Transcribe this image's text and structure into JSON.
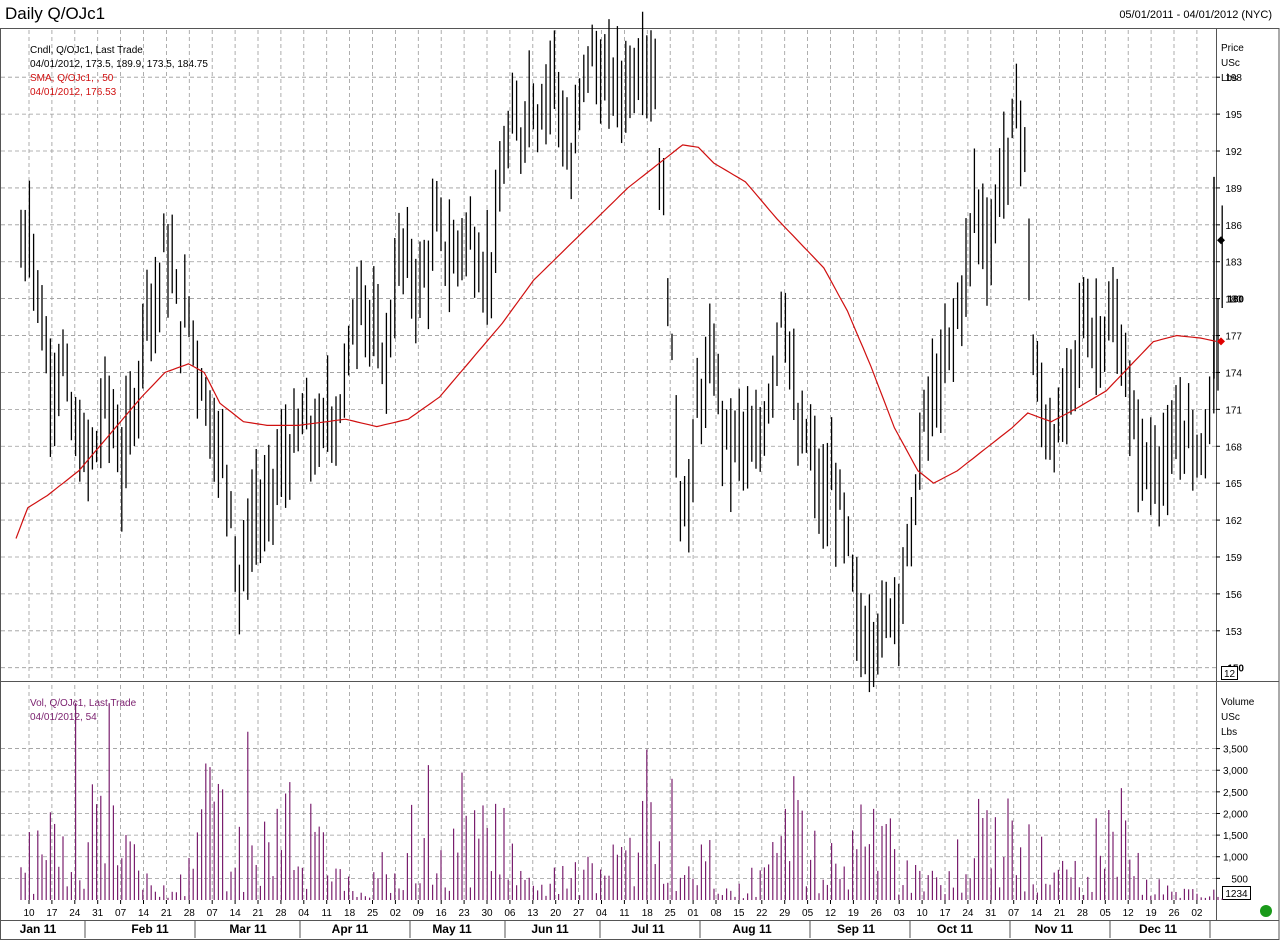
{
  "header": {
    "title": "Daily Q/OJc1",
    "date_range": "05/01/2011 - 04/01/2012 (NYC)"
  },
  "price_pane": {
    "legend": {
      "line1": "Cndl, Q/OJc1, Last Trade",
      "line2": "04/01/2012, 173.5, 189.9, 173.5, 184.75",
      "line3": "SMA, Q/OJc1, , 50",
      "line4": "04/01/2012, 176.53"
    },
    "axis_title": [
      "Price",
      "USc",
      "Lbs"
    ],
    "y_ticks": [
      153,
      156,
      159,
      162,
      165,
      168,
      171,
      174,
      177,
      180,
      183,
      186,
      189,
      192,
      195,
      198
    ],
    "bold_ticks": [
      150,
      180
    ],
    "scale_box": "12",
    "colors": {
      "bars": "#000000",
      "sma": "#d01010",
      "last_marker": "#000000",
      "sma_marker": "#e00000"
    }
  },
  "volume_pane": {
    "legend": {
      "line1": "Vol, Q/OJc1, Last Trade",
      "line2": "04/01/2012, 54"
    },
    "axis_title": [
      "Volume",
      "USc",
      "Lbs"
    ],
    "y_ticks": [
      500,
      1000,
      1500,
      2000,
      2500,
      3000,
      3500
    ],
    "y_tick_labels": [
      "500",
      "1,000",
      "1,500",
      "2,000",
      "2,500",
      "3,000",
      "3,500"
    ],
    "scale_box": "1234",
    "color": "#7a1f6e"
  },
  "x_axis": {
    "day_labels": [
      "10",
      "17",
      "24",
      "31",
      "07",
      "14",
      "21",
      "28",
      "07",
      "14",
      "21",
      "28",
      "04",
      "11",
      "18",
      "25",
      "02",
      "09",
      "16",
      "23",
      "30",
      "06",
      "13",
      "20",
      "27",
      "04",
      "11",
      "18",
      "25",
      "01",
      "08",
      "15",
      "22",
      "29",
      "05",
      "12",
      "19",
      "26",
      "03",
      "10",
      "17",
      "24",
      "31",
      "07",
      "14",
      "21",
      "28",
      "05",
      "12",
      "19",
      "26",
      "02"
    ],
    "months": [
      "Jan 11",
      "Feb 11",
      "Mar 11",
      "Apr 11",
      "May 11",
      "Jun 11",
      "Jul 11",
      "Aug 11",
      "Sep 11",
      "Oct 11",
      "Nov 11",
      "Dec 11"
    ]
  },
  "chart_data": {
    "type": "bar",
    "title": "Daily Q/OJc1",
    "date_range": "05/01/2011 - 04/01/2012 (NYC)",
    "ylim_price": [
      149,
      202
    ],
    "ylim_volume": [
      0,
      4600
    ],
    "price_anchors": [
      [
        0,
        184
      ],
      [
        2,
        186
      ],
      [
        5,
        178
      ],
      [
        7,
        173
      ],
      [
        10,
        175
      ],
      [
        12,
        170
      ],
      [
        15,
        167
      ],
      [
        18,
        168
      ],
      [
        20,
        172
      ],
      [
        22,
        170
      ],
      [
        24,
        166
      ],
      [
        26,
        170
      ],
      [
        28,
        173
      ],
      [
        30,
        181
      ],
      [
        32,
        179
      ],
      [
        34,
        184
      ],
      [
        36,
        182
      ],
      [
        38,
        178
      ],
      [
        40,
        179
      ],
      [
        42,
        175
      ],
      [
        44,
        172
      ],
      [
        46,
        169
      ],
      [
        48,
        167
      ],
      [
        50,
        164
      ],
      [
        52,
        156
      ],
      [
        54,
        160
      ],
      [
        56,
        163
      ],
      [
        58,
        162
      ],
      [
        60,
        165
      ],
      [
        63,
        167
      ],
      [
        65,
        168
      ],
      [
        67,
        170
      ],
      [
        69,
        169
      ],
      [
        71,
        168
      ],
      [
        73,
        171
      ],
      [
        75,
        170
      ],
      [
        77,
        173
      ],
      [
        79,
        178
      ],
      [
        81,
        181
      ],
      [
        83,
        178
      ],
      [
        85,
        176
      ],
      [
        87,
        175
      ],
      [
        89,
        181
      ],
      [
        91,
        184
      ],
      [
        93,
        182
      ],
      [
        95,
        181
      ],
      [
        97,
        183
      ],
      [
        99,
        186
      ],
      [
        101,
        184
      ],
      [
        103,
        183
      ],
      [
        105,
        185
      ],
      [
        107,
        185
      ],
      [
        109,
        183
      ],
      [
        111,
        182
      ],
      [
        113,
        185
      ],
      [
        115,
        191
      ],
      [
        117,
        194
      ],
      [
        119,
        193
      ],
      [
        121,
        197
      ],
      [
        123,
        195
      ],
      [
        125,
        197
      ],
      [
        127,
        199
      ],
      [
        129,
        194
      ],
      [
        131,
        190
      ],
      [
        133,
        196
      ],
      [
        135,
        200
      ],
      [
        137,
        199
      ],
      [
        139,
        197
      ],
      [
        141,
        198
      ],
      [
        143,
        197
      ],
      [
        145,
        198
      ],
      [
        147,
        199
      ],
      [
        149,
        200
      ],
      [
        151,
        197
      ],
      [
        153,
        187
      ],
      [
        155,
        175
      ],
      [
        157,
        164
      ],
      [
        159,
        163
      ],
      [
        161,
        171
      ],
      [
        163,
        173
      ],
      [
        165,
        175
      ],
      [
        167,
        170
      ],
      [
        169,
        168
      ],
      [
        171,
        169
      ],
      [
        173,
        168
      ],
      [
        175,
        167
      ],
      [
        177,
        170
      ],
      [
        179,
        174
      ],
      [
        181,
        180
      ],
      [
        183,
        176
      ],
      [
        185,
        168
      ],
      [
        187,
        169
      ],
      [
        189,
        166
      ],
      [
        191,
        163
      ],
      [
        193,
        165
      ],
      [
        195,
        163
      ],
      [
        197,
        160
      ],
      [
        199,
        154
      ],
      [
        201,
        152
      ],
      [
        203,
        153
      ],
      [
        205,
        153
      ],
      [
        207,
        155
      ],
      [
        209,
        156
      ],
      [
        211,
        159
      ],
      [
        213,
        164
      ],
      [
        215,
        170
      ],
      [
        217,
        172
      ],
      [
        219,
        173
      ],
      [
        221,
        176
      ],
      [
        223,
        179
      ],
      [
        225,
        182
      ],
      [
        227,
        188
      ],
      [
        229,
        186
      ],
      [
        231,
        184
      ],
      [
        233,
        190
      ],
      [
        235,
        191
      ],
      [
        237,
        196
      ],
      [
        239,
        192
      ],
      [
        241,
        175
      ],
      [
        243,
        171
      ],
      [
        245,
        169
      ],
      [
        247,
        169
      ],
      [
        249,
        172
      ],
      [
        251,
        175
      ],
      [
        253,
        179
      ],
      [
        255,
        177
      ],
      [
        257,
        177
      ],
      [
        259,
        178
      ],
      [
        261,
        177
      ],
      [
        263,
        174
      ],
      [
        265,
        169
      ],
      [
        267,
        167
      ],
      [
        269,
        166
      ],
      [
        271,
        167
      ],
      [
        273,
        166
      ],
      [
        275,
        168
      ],
      [
        277,
        170
      ],
      [
        279,
        168
      ],
      [
        281,
        168
      ],
      [
        283,
        171
      ],
      [
        285,
        176
      ],
      [
        286,
        184.75
      ]
    ],
    "sma_anchors": [
      [
        0,
        160.5
      ],
      [
        3,
        163
      ],
      [
        8,
        164
      ],
      [
        16,
        166
      ],
      [
        24,
        169
      ],
      [
        32,
        172
      ],
      [
        38,
        174
      ],
      [
        44,
        174.7
      ],
      [
        48,
        174
      ],
      [
        52,
        171.5
      ],
      [
        58,
        170
      ],
      [
        64,
        169.7
      ],
      [
        72,
        169.7
      ],
      [
        84,
        170.2
      ],
      [
        92,
        169.6
      ],
      [
        100,
        170.2
      ],
      [
        108,
        172
      ],
      [
        116,
        175
      ],
      [
        124,
        178
      ],
      [
        132,
        181.5
      ],
      [
        140,
        184
      ],
      [
        148,
        186.5
      ],
      [
        156,
        189
      ],
      [
        164,
        191
      ],
      [
        170,
        192.5
      ],
      [
        174,
        192.3
      ],
      [
        178,
        191
      ],
      [
        186,
        189.5
      ],
      [
        194,
        186.5
      ],
      [
        200,
        184.5
      ],
      [
        206,
        182.5
      ],
      [
        212,
        179
      ],
      [
        218,
        174.5
      ],
      [
        224,
        169.5
      ],
      [
        230,
        166
      ],
      [
        234,
        165
      ],
      [
        240,
        166
      ],
      [
        246,
        167.5
      ],
      [
        254,
        169.5
      ],
      [
        258,
        170.7
      ],
      [
        264,
        170
      ],
      [
        270,
        171
      ],
      [
        278,
        172.5
      ],
      [
        284,
        174.5
      ],
      [
        290,
        176.5
      ],
      [
        296,
        177
      ],
      [
        302,
        176.8
      ],
      [
        306,
        176.53
      ]
    ],
    "volume_anchors": [
      [
        0,
        900
      ],
      [
        5,
        1400
      ],
      [
        10,
        1500
      ],
      [
        15,
        2200
      ],
      [
        20,
        1800
      ],
      [
        25,
        1400
      ],
      [
        30,
        500
      ],
      [
        35,
        200
      ],
      [
        40,
        900
      ],
      [
        45,
        2800
      ],
      [
        50,
        1600
      ],
      [
        55,
        1400
      ],
      [
        60,
        1500
      ],
      [
        65,
        2300
      ],
      [
        70,
        1300
      ],
      [
        75,
        800
      ],
      [
        80,
        200
      ],
      [
        85,
        800
      ],
      [
        90,
        1900
      ],
      [
        95,
        1200
      ],
      [
        100,
        1000
      ],
      [
        105,
        1700
      ],
      [
        110,
        1900
      ],
      [
        115,
        1500
      ],
      [
        120,
        700
      ],
      [
        125,
        300
      ],
      [
        130,
        1000
      ],
      [
        135,
        800
      ],
      [
        140,
        700
      ],
      [
        145,
        1500
      ],
      [
        150,
        3400
      ],
      [
        155,
        2400
      ],
      [
        160,
        1400
      ],
      [
        165,
        700
      ],
      [
        170,
        200
      ],
      [
        175,
        700
      ],
      [
        180,
        1000
      ],
      [
        185,
        2400
      ],
      [
        190,
        1200
      ],
      [
        195,
        1000
      ],
      [
        200,
        1200
      ],
      [
        205,
        1900
      ],
      [
        210,
        900
      ],
      [
        215,
        300
      ],
      [
        220,
        800
      ],
      [
        225,
        1100
      ],
      [
        230,
        1400
      ],
      [
        235,
        1800
      ],
      [
        240,
        1400
      ],
      [
        245,
        1000
      ],
      [
        250,
        700
      ],
      [
        255,
        1500
      ],
      [
        260,
        2100
      ],
      [
        265,
        1200
      ],
      [
        270,
        600
      ],
      [
        275,
        200
      ]
    ],
    "last": {
      "date": "04/01/2012",
      "open": 173.5,
      "high": 189.9,
      "low": 173.5,
      "close": 184.75,
      "sma50": 176.53,
      "volume": 54
    }
  }
}
